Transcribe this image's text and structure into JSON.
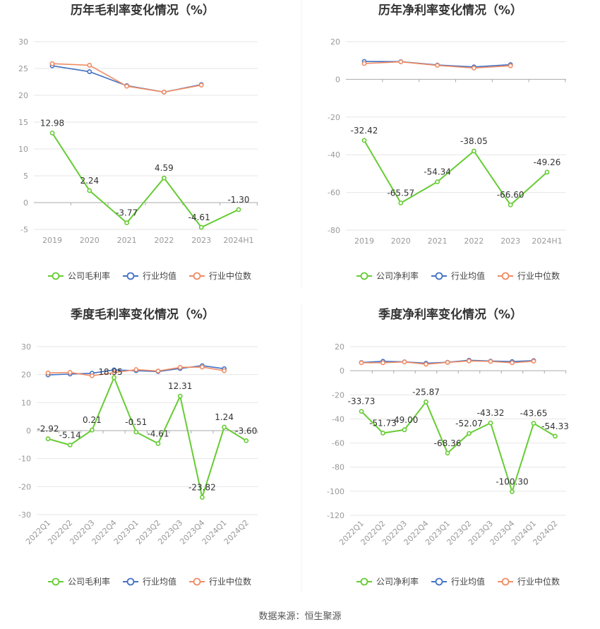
{
  "source_label": "数据来源：恒生聚源",
  "colors": {
    "company": "#66cc33",
    "industry_avg": "#4472c4",
    "industry_median": "#f08c64",
    "grid": "#e6e6e6",
    "axis_text": "#999999",
    "title_text": "#333333",
    "label_text": "#333333"
  },
  "chart_data": [
    {
      "type": "line",
      "title": "历年毛利率变化情况（%）",
      "categories": [
        "2019",
        "2020",
        "2021",
        "2022",
        "2023",
        "2024H1"
      ],
      "ylim": [
        -5,
        30
      ],
      "yticks": [
        "30",
        "25",
        "20",
        "15",
        "10",
        "5",
        "0",
        "-5"
      ],
      "series": [
        {
          "name": "公司毛利率",
          "values": [
            12.98,
            2.24,
            -3.77,
            4.59,
            -4.61,
            -1.3
          ],
          "labels": [
            "12.98",
            "2.24",
            "-3.77",
            "4.59",
            "-4.61",
            "-1.30"
          ]
        },
        {
          "name": "行业均值",
          "values": [
            25.5,
            24.4,
            21.8,
            20.6,
            22.0,
            null
          ]
        },
        {
          "name": "行业中位数",
          "values": [
            25.9,
            25.6,
            21.7,
            20.6,
            21.9,
            null
          ]
        }
      ]
    },
    {
      "type": "line",
      "title": "历年净利率变化情况（%）",
      "categories": [
        "2019",
        "2020",
        "2021",
        "2022",
        "2023",
        "2024H1"
      ],
      "ylim": [
        -80,
        20
      ],
      "yticks": [
        "20",
        "0",
        "-20",
        "-40",
        "-60",
        "-80"
      ],
      "series": [
        {
          "name": "公司净利率",
          "values": [
            -32.42,
            -65.57,
            -54.34,
            -38.05,
            -66.6,
            -49.26
          ],
          "labels": [
            "-32.42",
            "-65.57",
            "-54.34",
            "-38.05",
            "-66.60",
            "-49.26"
          ]
        },
        {
          "name": "行业均值",
          "values": [
            9.5,
            9.4,
            7.6,
            6.6,
            7.8,
            null
          ]
        },
        {
          "name": "行业中位数",
          "values": [
            8.4,
            9.3,
            7.4,
            6.0,
            7.2,
            null
          ]
        }
      ]
    },
    {
      "type": "line",
      "title": "季度毛利率变化情况（%）",
      "categories": [
        "2022Q1",
        "2022Q2",
        "2022Q3",
        "2022Q4",
        "2023Q1",
        "2023Q2",
        "2023Q3",
        "2023Q4",
        "2024Q1",
        "2024Q2"
      ],
      "ylim": [
        -30,
        30
      ],
      "yticks": [
        "30",
        "20",
        "10",
        "0",
        "-10",
        "-20",
        "-30"
      ],
      "series": [
        {
          "name": "公司毛利率",
          "values": [
            -2.92,
            -5.14,
            0.21,
            18.95,
            -0.51,
            -4.61,
            12.31,
            -23.82,
            1.24,
            -3.6
          ],
          "labels": [
            "-2.92",
            "-5.14",
            "0.21",
            "18.95",
            "-0.51",
            "-4.61",
            "12.31",
            "-23.82",
            "1.24",
            "-3.60"
          ]
        },
        {
          "name": "行业均值",
          "values": [
            19.9,
            20.2,
            20.5,
            21.7,
            21.4,
            21.1,
            22.2,
            23.2,
            22.1,
            null
          ]
        },
        {
          "name": "行业中位数",
          "values": [
            20.6,
            20.8,
            19.6,
            20.7,
            21.8,
            21.3,
            22.6,
            22.7,
            21.4,
            null
          ]
        }
      ]
    },
    {
      "type": "line",
      "title": "季度净利率变化情况（%）",
      "categories": [
        "2022Q1",
        "2022Q2",
        "2022Q3",
        "2022Q4",
        "2023Q1",
        "2023Q2",
        "2023Q3",
        "2023Q4",
        "2024Q1",
        "2024Q2"
      ],
      "ylim": [
        -120,
        20
      ],
      "yticks": [
        "20",
        "0",
        "-20",
        "-40",
        "-60",
        "-80",
        "-100",
        "-120"
      ],
      "series": [
        {
          "name": "公司净利率",
          "values": [
            -33.73,
            -51.73,
            -49.0,
            -25.87,
            -68.36,
            -52.07,
            -43.32,
            -100.3,
            -43.65,
            -54.33
          ],
          "labels": [
            "-33.73",
            "-51.73",
            "-49.00",
            "-25.87",
            "-68.36",
            "-52.07",
            "-43.32",
            "-100.30",
            "-43.65",
            "-54.33"
          ]
        },
        {
          "name": "行业均值",
          "values": [
            6.8,
            7.8,
            7.4,
            6.2,
            7.0,
            8.7,
            8.0,
            7.6,
            8.4,
            null
          ]
        },
        {
          "name": "行业中位数",
          "values": [
            6.6,
            6.6,
            7.3,
            5.4,
            6.9,
            8.1,
            7.7,
            6.6,
            7.9,
            null
          ]
        }
      ]
    }
  ]
}
